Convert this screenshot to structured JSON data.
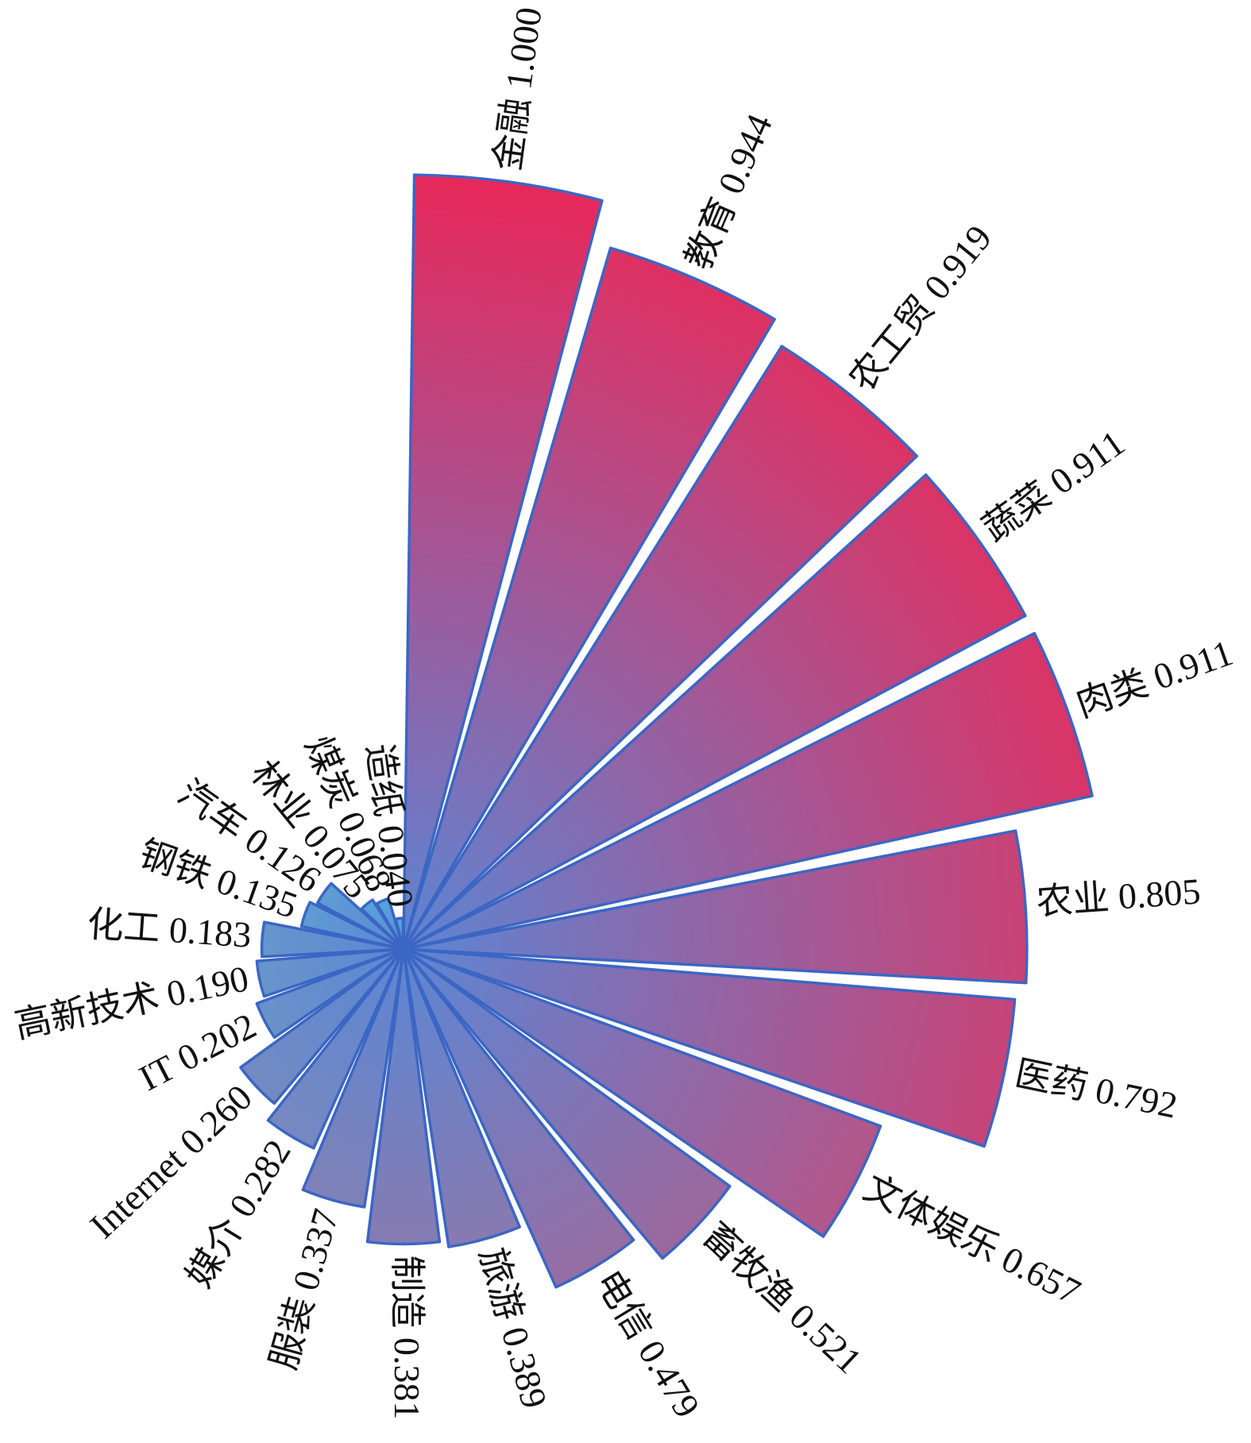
{
  "chart_data": {
    "type": "bar",
    "subtype": "radial-rose",
    "title": "",
    "xlabel": "",
    "ylabel": "",
    "ylim": [
      0,
      1
    ],
    "categories": [
      "金融",
      "教育",
      "农工贸",
      "蔬菜",
      "肉类",
      "农业",
      "医药",
      "文体娱乐",
      "畜牧渔",
      "电信",
      "旅游",
      "制造",
      "服装",
      "媒介",
      "Internet",
      "IT",
      "高新技术",
      "化工",
      "钢铁",
      "汽车",
      "林业",
      "煤炭",
      "造纸"
    ],
    "values": [
      1.0,
      0.944,
      0.919,
      0.911,
      0.911,
      0.805,
      0.792,
      0.657,
      0.521,
      0.479,
      0.389,
      0.381,
      0.337,
      0.282,
      0.26,
      0.202,
      0.19,
      0.183,
      0.135,
      0.126,
      0.075,
      0.068,
      0.04
    ],
    "value_labels": [
      "1.000",
      "0.944",
      "0.919",
      "0.911",
      "0.911",
      "0.805",
      "0.792",
      "0.657",
      "0.521",
      "0.479",
      "0.389",
      "0.381",
      "0.337",
      "0.282",
      "0.260",
      "0.202",
      "0.190",
      "0.183",
      "0.135",
      "0.126",
      "0.075",
      "0.068",
      "0.040"
    ],
    "colors": {
      "high": "#e8285a",
      "low": "#4aaee6",
      "edge": "#3b66c4",
      "text": "#111111"
    }
  }
}
